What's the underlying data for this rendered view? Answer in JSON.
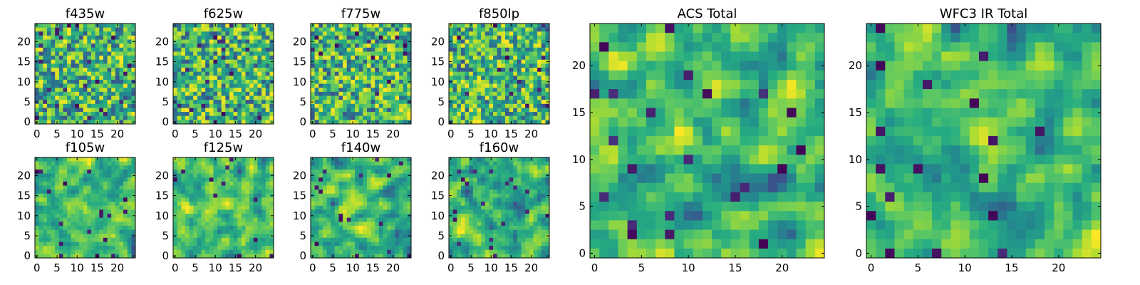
{
  "chart_data": [
    {
      "type": "heatmap",
      "title": "f435w",
      "xticks": [
        0,
        5,
        10,
        15,
        20
      ],
      "yticks": [
        0,
        5,
        10,
        15,
        20
      ],
      "xlim": [
        0,
        25
      ],
      "ylim": [
        0,
        25
      ],
      "grid_size": 25,
      "colormap": "viridis",
      "seed": 11
    },
    {
      "type": "heatmap",
      "title": "f625w",
      "xticks": [
        0,
        5,
        10,
        15,
        20
      ],
      "yticks": [
        0,
        5,
        10,
        15,
        20
      ],
      "xlim": [
        0,
        25
      ],
      "ylim": [
        0,
        25
      ],
      "grid_size": 25,
      "colormap": "viridis",
      "seed": 23
    },
    {
      "type": "heatmap",
      "title": "f775w",
      "xticks": [
        0,
        5,
        10,
        15,
        20
      ],
      "yticks": [
        0,
        5,
        10,
        15,
        20
      ],
      "xlim": [
        0,
        25
      ],
      "ylim": [
        0,
        25
      ],
      "grid_size": 25,
      "colormap": "viridis",
      "seed": 37
    },
    {
      "type": "heatmap",
      "title": "f850lp",
      "xticks": [
        0,
        5,
        10,
        15,
        20
      ],
      "yticks": [
        0,
        5,
        10,
        15,
        20
      ],
      "xlim": [
        0,
        25
      ],
      "ylim": [
        0,
        25
      ],
      "grid_size": 25,
      "colormap": "viridis",
      "seed": 41
    },
    {
      "type": "heatmap",
      "title": "f105w",
      "xticks": [
        0,
        5,
        10,
        15,
        20
      ],
      "yticks": [
        0,
        5,
        10,
        15,
        20
      ],
      "xlim": [
        0,
        25
      ],
      "ylim": [
        0,
        25
      ],
      "grid_size": 25,
      "colormap": "viridis",
      "seed": 53
    },
    {
      "type": "heatmap",
      "title": "f125w",
      "xticks": [
        0,
        5,
        10,
        15,
        20
      ],
      "yticks": [
        0,
        5,
        10,
        15,
        20
      ],
      "xlim": [
        0,
        25
      ],
      "ylim": [
        0,
        25
      ],
      "grid_size": 25,
      "colormap": "viridis",
      "seed": 67
    },
    {
      "type": "heatmap",
      "title": "f140w",
      "xticks": [
        0,
        5,
        10,
        15,
        20
      ],
      "yticks": [
        0,
        5,
        10,
        15,
        20
      ],
      "xlim": [
        0,
        25
      ],
      "ylim": [
        0,
        25
      ],
      "grid_size": 25,
      "colormap": "viridis",
      "seed": 71
    },
    {
      "type": "heatmap",
      "title": "f160w",
      "xticks": [
        0,
        5,
        10,
        15,
        20
      ],
      "yticks": [
        0,
        5,
        10,
        15,
        20
      ],
      "xlim": [
        0,
        25
      ],
      "ylim": [
        0,
        25
      ],
      "grid_size": 25,
      "colormap": "viridis",
      "seed": 83
    },
    {
      "type": "heatmap",
      "title": "ACS Total",
      "xticks": [
        0,
        5,
        10,
        15,
        20
      ],
      "yticks": [
        0,
        5,
        10,
        15,
        20
      ],
      "xlim": [
        0,
        25
      ],
      "ylim": [
        0,
        25
      ],
      "grid_size": 25,
      "colormap": "viridis",
      "seed": 97
    },
    {
      "type": "heatmap",
      "title": "WFC3 IR Total",
      "xticks": [
        0,
        5,
        10,
        15,
        20
      ],
      "yticks": [
        0,
        5,
        10,
        15,
        20
      ],
      "xlim": [
        0,
        25
      ],
      "ylim": [
        0,
        25
      ],
      "grid_size": 25,
      "colormap": "viridis",
      "seed": 101
    }
  ]
}
